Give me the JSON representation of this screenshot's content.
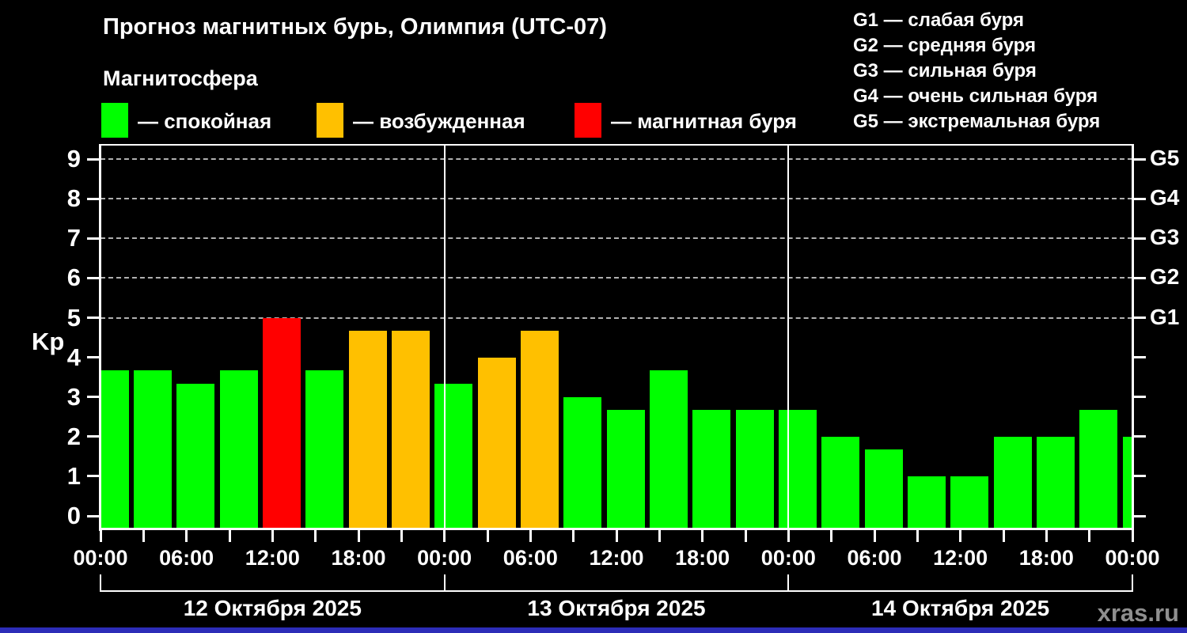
{
  "header": {
    "title": "Прогноз магнитных бурь, Олимпия (UTC-07)",
    "subtitle": "Магнитосфера"
  },
  "legend": {
    "items": [
      {
        "key": "quiet",
        "label": "— спокойная",
        "color": "#00ff00"
      },
      {
        "key": "excited",
        "label": "— возбужденная",
        "color": "#ffc000"
      },
      {
        "key": "storm",
        "label": "— магнитная буря",
        "color": "#ff0000"
      }
    ]
  },
  "g_legend": {
    "items": [
      "G1 — слабая буря",
      "G2 — средняя буря",
      "G3 — сильная буря",
      "G4 — очень сильная буря",
      "G5 — экстремальная буря"
    ]
  },
  "axes": {
    "y_title": "Kp",
    "y_ticks": [
      0,
      1,
      2,
      3,
      4,
      5,
      6,
      7,
      8,
      9
    ],
    "g_ticks": [
      {
        "label": "G1",
        "value": 5
      },
      {
        "label": "G2",
        "value": 6
      },
      {
        "label": "G3",
        "value": 7
      },
      {
        "label": "G4",
        "value": 8
      },
      {
        "label": "G5",
        "value": 9
      }
    ],
    "x_time_labels": [
      "00:00",
      "06:00",
      "12:00",
      "18:00",
      "00:00",
      "06:00",
      "12:00",
      "18:00",
      "00:00",
      "06:00",
      "12:00",
      "18:00",
      "00:00"
    ],
    "date_labels": [
      "12 Октября 2025",
      "13 Октября 2025",
      "14 Октября 2025"
    ]
  },
  "chart_data": {
    "type": "bar",
    "title": "Прогноз магнитных бурь, Олимпия (UTC-07)",
    "ylabel": "Kp",
    "ylim": [
      0,
      9
    ],
    "x_hours": [
      0,
      3,
      6,
      9,
      12,
      15,
      18,
      21,
      24,
      27,
      30,
      33,
      36,
      39,
      42,
      45,
      48,
      51,
      54,
      57,
      60,
      63,
      66,
      69,
      72
    ],
    "values": [
      3.67,
      3.67,
      3.33,
      3.67,
      5,
      3.67,
      4.67,
      4.67,
      3.33,
      4,
      4.67,
      3,
      2.67,
      3.67,
      2.67,
      2.67,
      2.67,
      2,
      1.67,
      1,
      1,
      2,
      2,
      2.67,
      2
    ],
    "color_rules": {
      "storm_min": 5,
      "excited_min": 4
    },
    "gridlines_at": [
      5,
      6,
      7,
      8,
      9
    ],
    "day_boundaries_hours": [
      24,
      48
    ],
    "legend_position": "top-left",
    "grid": "dashed horizontal lines at G storm levels only"
  },
  "footer": {
    "watermark": "xras.ru"
  },
  "colors": {
    "background": "#000000",
    "text": "#ffffff",
    "quiet": "#00ff00",
    "excited": "#ffc000",
    "storm": "#ff0000",
    "grid": "#b0b0b0",
    "frame": "#ffffff",
    "watermark": "#8f8f8f",
    "footer_strip": "#2d2db8"
  }
}
